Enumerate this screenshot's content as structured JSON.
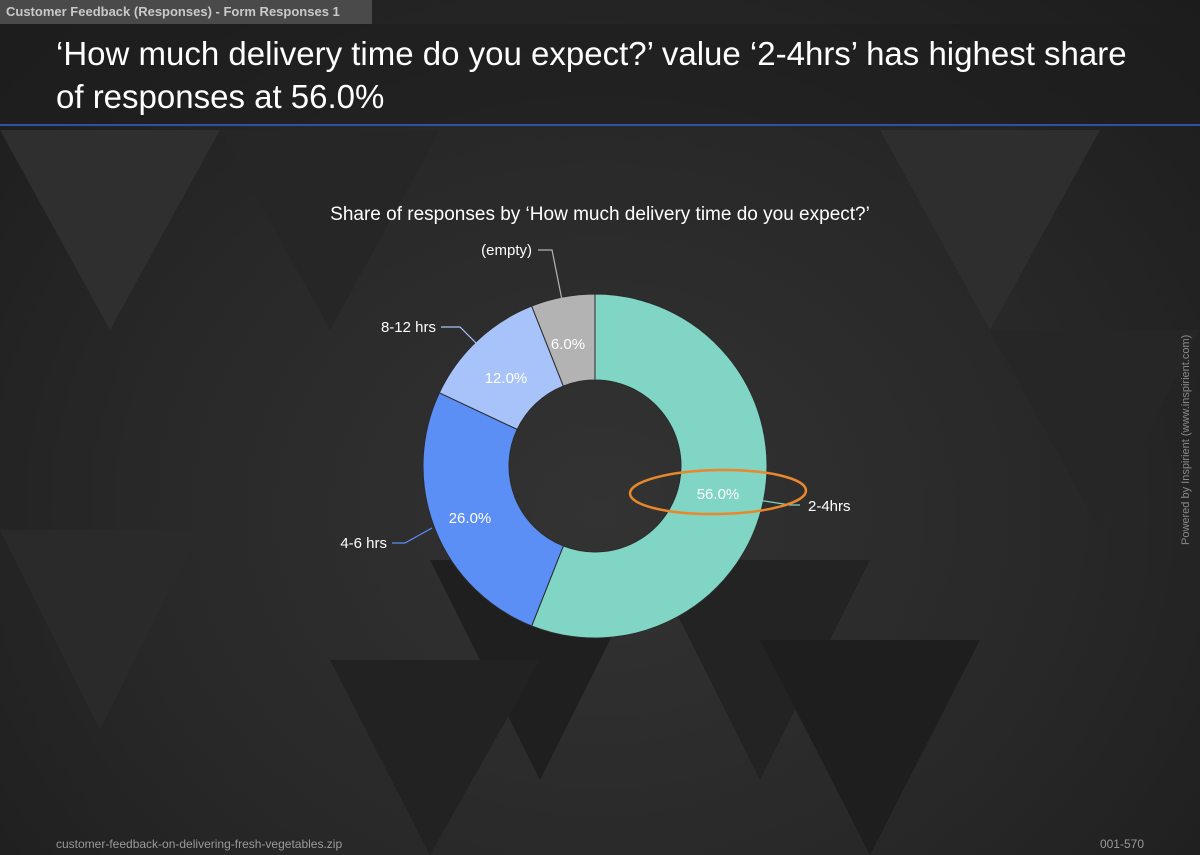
{
  "tab_label": "Customer Feedback (Responses) - Form Responses 1",
  "headline": "‘How much delivery time do you expect?’ value ‘2-4hrs’ has highest share of responses at 56.0%",
  "side_note": "Powered by Inspirient (www.inspirient.com)",
  "footer": {
    "filename": "customer-feedback-on-delivering-fresh-vegetables.zip",
    "page_code": "001-570"
  },
  "colors": {
    "highlight_ring": "#e8872b",
    "slice_2_4hrs": "#80d5c5",
    "slice_4_6hrs": "#5b8ff5",
    "slice_8_12hrs": "#a8c3fa",
    "slice_empty": "#b3b3b3"
  },
  "chart_data": {
    "type": "pie",
    "style": "donut",
    "title": "Share of responses by ‘How much delivery time do you expect?’",
    "slices": [
      {
        "label": "2-4hrs",
        "value": 56.0,
        "value_label": "56.0%",
        "color": "#80d5c5",
        "highlighted": true
      },
      {
        "label": "4-6 hrs",
        "value": 26.0,
        "value_label": "26.0%",
        "color": "#5b8ff5"
      },
      {
        "label": "8-12 hrs",
        "value": 12.0,
        "value_label": "12.0%",
        "color": "#a8c3fa"
      },
      {
        "label": "(empty)",
        "value": 6.0,
        "value_label": "6.0%",
        "color": "#b3b3b3"
      }
    ]
  }
}
